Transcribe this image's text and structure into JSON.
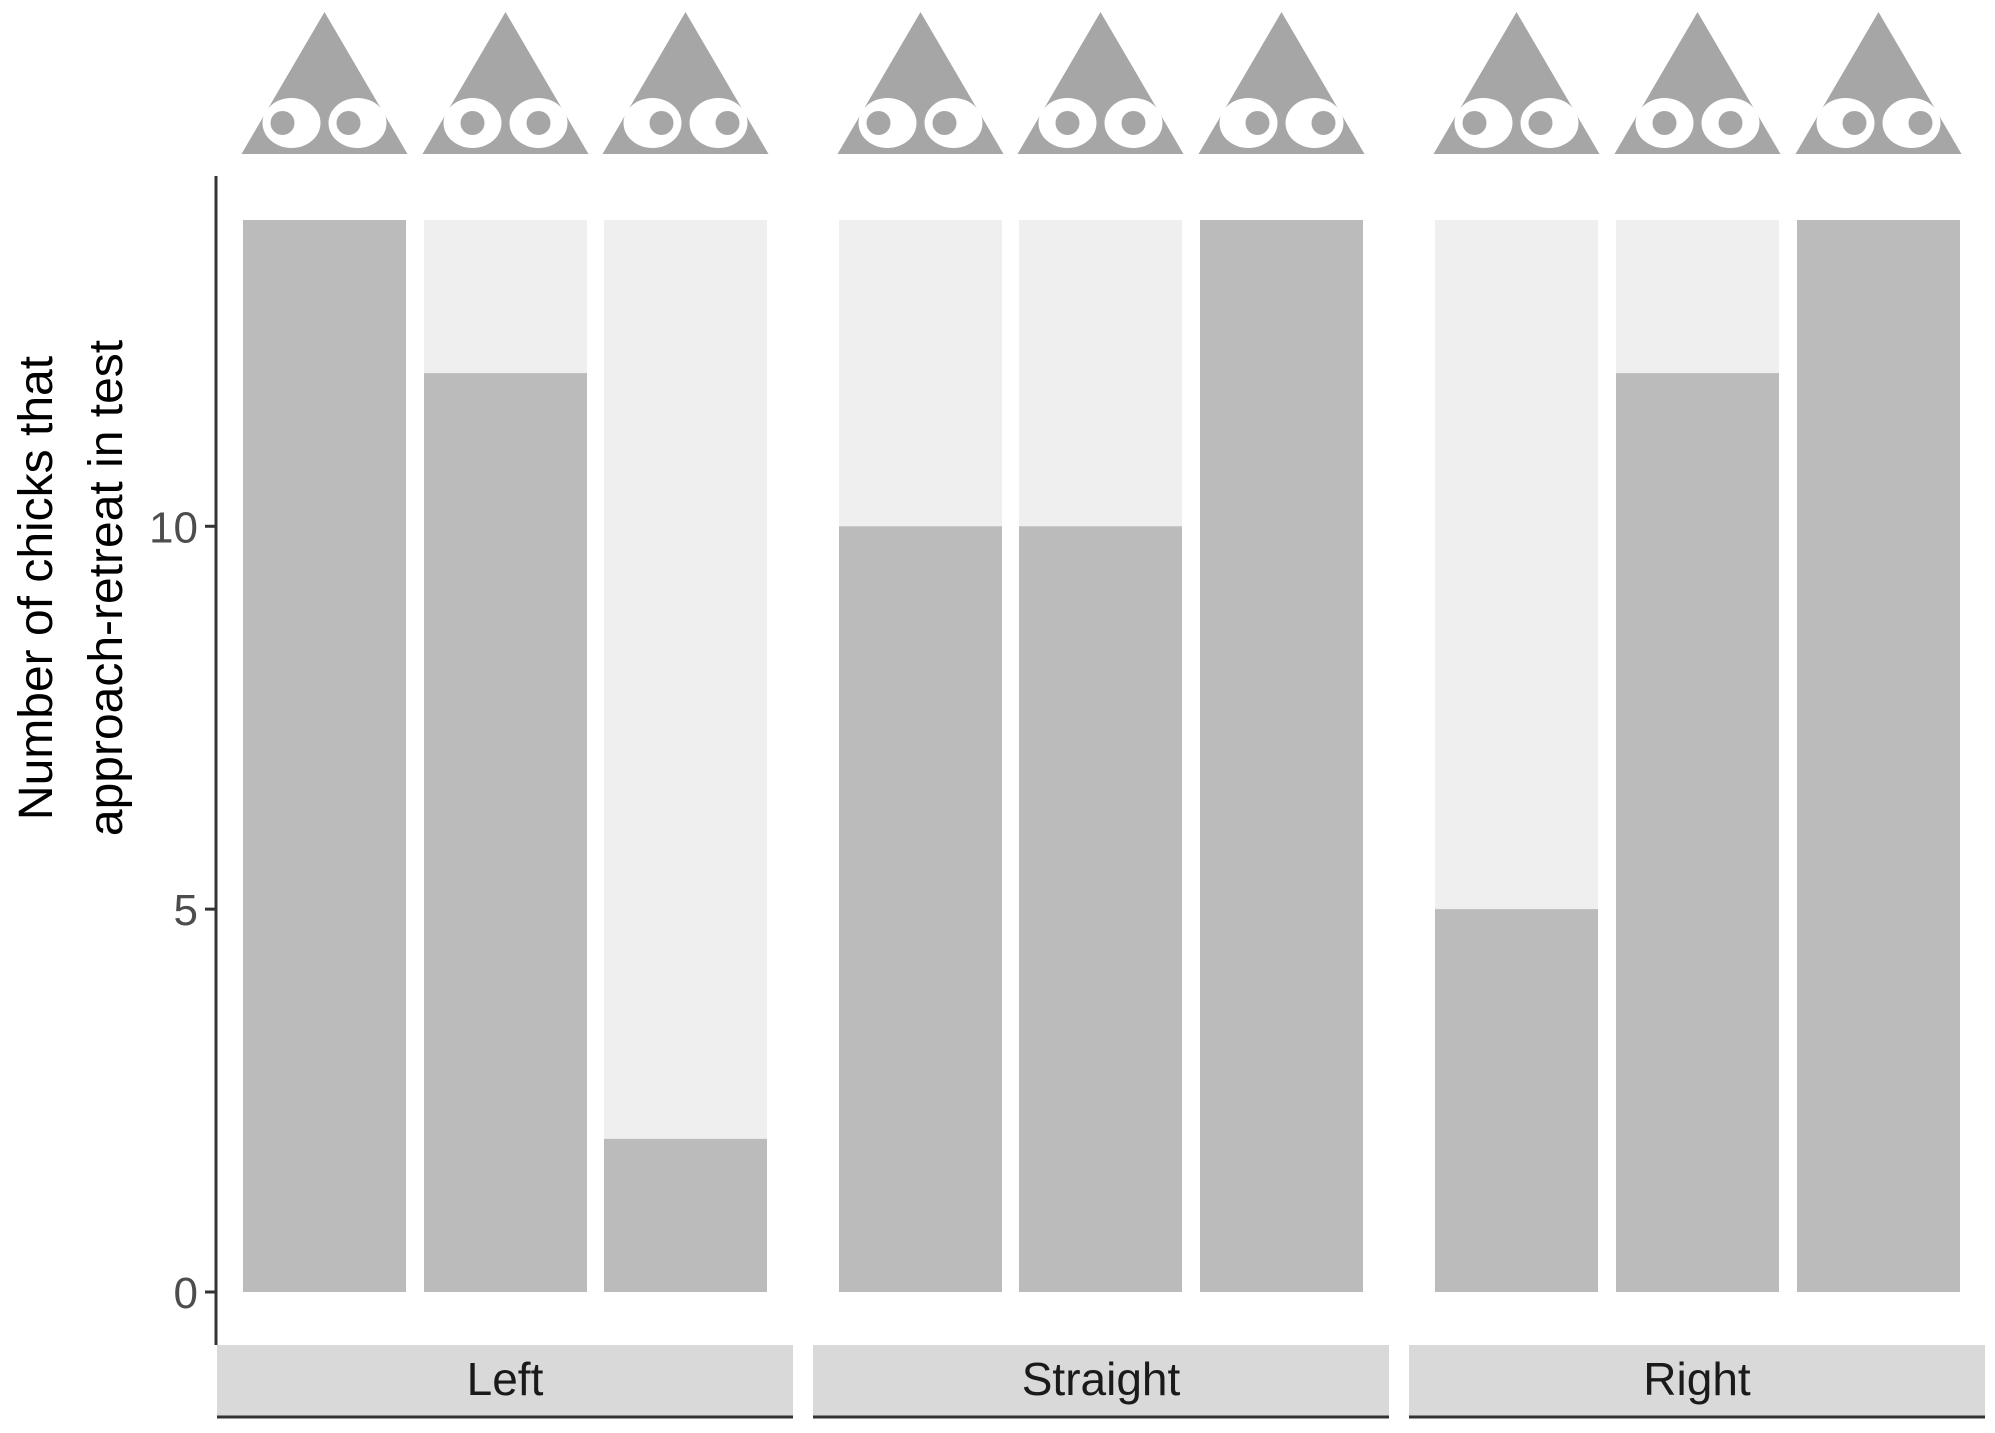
{
  "chart_data": {
    "type": "bar",
    "ylabel_lines": [
      "Number of chicks that",
      "approach-retreat in test"
    ],
    "ylim": [
      0,
      14
    ],
    "yticks": [
      0,
      5,
      10
    ],
    "total_per_bar": 14,
    "grid": false,
    "legend": "none",
    "colors": {
      "approach": "#bbbbbb",
      "remainder": "#efefef",
      "strip": "#d9d9d9",
      "icon": "#a6a6a6",
      "eye": "#ffffff",
      "axis": "#333333",
      "tick_label": "#4d4d4d"
    },
    "panels": [
      {
        "label": "Left",
        "bars": [
          {
            "gaze": "left",
            "value": 14
          },
          {
            "gaze": "straight",
            "value": 12
          },
          {
            "gaze": "right",
            "value": 2
          }
        ]
      },
      {
        "label": "Straight",
        "bars": [
          {
            "gaze": "left",
            "value": 10
          },
          {
            "gaze": "straight",
            "value": 10
          },
          {
            "gaze": "right",
            "value": 14
          }
        ]
      },
      {
        "label": "Right",
        "bars": [
          {
            "gaze": "left",
            "value": 5
          },
          {
            "gaze": "straight",
            "value": 12
          },
          {
            "gaze": "right",
            "value": 14
          }
        ]
      }
    ]
  }
}
